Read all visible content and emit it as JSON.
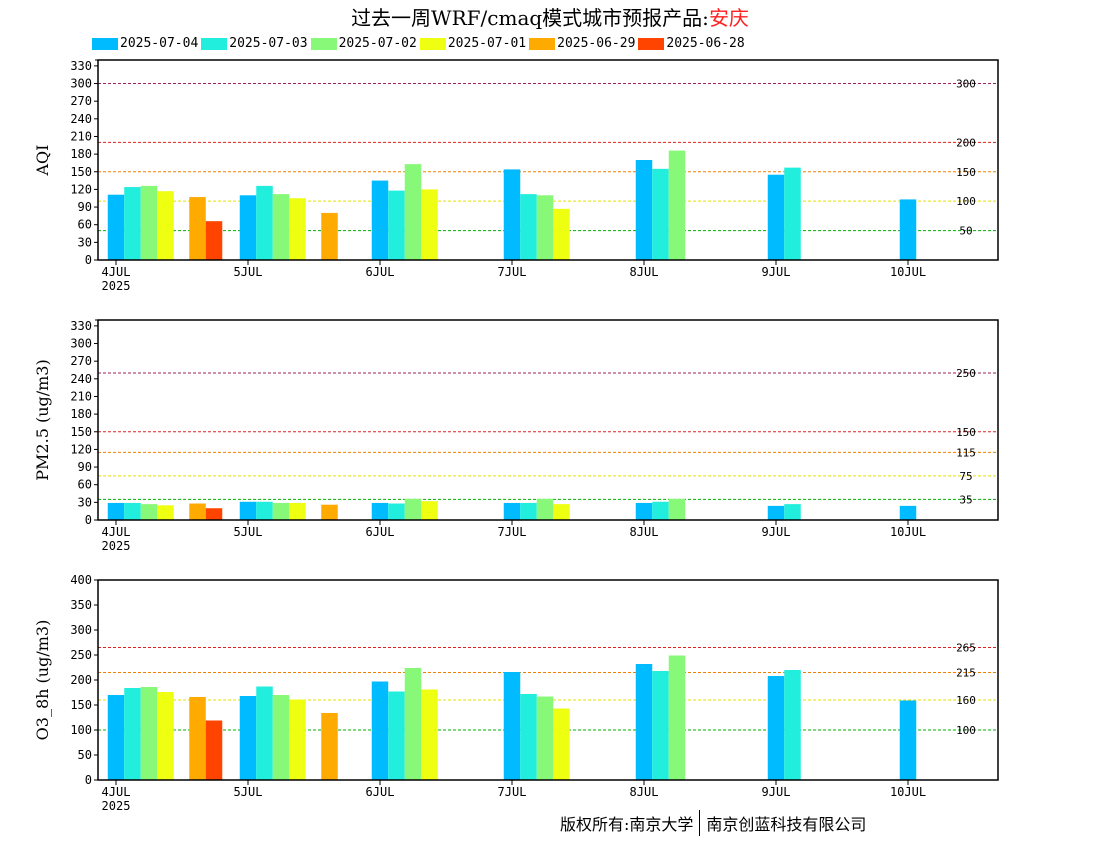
{
  "title": {
    "prefix": "过去一周WRF/cmaq模式城市预报产品:",
    "city": "安庆",
    "city_color": "#ff2020"
  },
  "footer": {
    "left": "版权所有:南京大学",
    "right": "南京创蓝科技有限公司"
  },
  "chart_data": [
    {
      "type": "bar",
      "ylabel": "AQI",
      "ylim": [
        0,
        340
      ],
      "yticks": [
        0,
        30,
        60,
        90,
        120,
        150,
        180,
        210,
        240,
        270,
        300,
        330
      ],
      "extra_ytick": 340,
      "x_tick_labels": [
        "4JUL",
        "5JUL",
        "6JUL",
        "7JUL",
        "8JUL",
        "9JUL",
        "10JUL"
      ],
      "x_year_label": "2025",
      "thresholds": [
        {
          "value": 300,
          "label": "300",
          "color": "#a0205a"
        },
        {
          "value": 200,
          "label": "200",
          "color": "#e02020"
        },
        {
          "value": 150,
          "label": "150",
          "color": "#f08000"
        },
        {
          "value": 100,
          "label": "100",
          "color": "#e8e000"
        },
        {
          "value": 50,
          "label": "50",
          "color": "#00b000"
        }
      ],
      "series": [
        {
          "name": "2025-07-04",
          "color": "#00bbff",
          "start_day": 0,
          "values": [
            111,
            110,
            135,
            154,
            170,
            145,
            103
          ]
        },
        {
          "name": "2025-07-03",
          "color": "#22eedd",
          "start_day": 0,
          "values": [
            124,
            126,
            118,
            112,
            155,
            157
          ]
        },
        {
          "name": "2025-07-02",
          "color": "#88f878",
          "start_day": 0,
          "values": [
            126,
            112,
            163,
            110,
            186
          ]
        },
        {
          "name": "2025-07-01",
          "color": "#eeff11",
          "start_day": 0,
          "values": [
            117,
            105,
            120,
            87
          ]
        },
        {
          "name": "2025-06-29",
          "color": "#ffaa00",
          "start_day": -1,
          "values": [
            107,
            80
          ]
        },
        {
          "name": "2025-06-28",
          "color": "#ff4400",
          "start_day": -1,
          "values": [
            66
          ]
        }
      ]
    },
    {
      "type": "bar",
      "ylabel": "PM2.5 (ug/m3)",
      "ylim": [
        0,
        340
      ],
      "yticks": [
        0,
        30,
        60,
        90,
        120,
        150,
        180,
        210,
        240,
        270,
        300,
        330
      ],
      "extra_ytick": 340,
      "x_tick_labels": [
        "4JUL",
        "5JUL",
        "6JUL",
        "7JUL",
        "8JUL",
        "9JUL",
        "10JUL"
      ],
      "x_year_label": "2025",
      "thresholds": [
        {
          "value": 250,
          "label": "250",
          "color": "#a0205a"
        },
        {
          "value": 150,
          "label": "150",
          "color": "#e02020"
        },
        {
          "value": 115,
          "label": "115",
          "color": "#f08000"
        },
        {
          "value": 75,
          "label": "75",
          "color": "#e8e000"
        },
        {
          "value": 35,
          "label": "35",
          "color": "#00b000"
        }
      ],
      "series": [
        {
          "name": "2025-07-04",
          "color": "#00bbff",
          "start_day": 0,
          "values": [
            29,
            31,
            29,
            29,
            29,
            24,
            24
          ]
        },
        {
          "name": "2025-07-03",
          "color": "#22eedd",
          "start_day": 0,
          "values": [
            29,
            31,
            28,
            29,
            31,
            27
          ]
        },
        {
          "name": "2025-07-02",
          "color": "#88f878",
          "start_day": 0,
          "values": [
            27,
            29,
            36,
            36,
            36
          ]
        },
        {
          "name": "2025-07-01",
          "color": "#eeff11",
          "start_day": 0,
          "values": [
            25,
            29,
            32,
            27
          ]
        },
        {
          "name": "2025-06-29",
          "color": "#ffaa00",
          "start_day": -1,
          "values": [
            28,
            26
          ]
        },
        {
          "name": "2025-06-28",
          "color": "#ff4400",
          "start_day": -1,
          "values": [
            20
          ]
        }
      ]
    },
    {
      "type": "bar",
      "ylabel": "O3_8h (ug/m3)",
      "ylim": [
        0,
        400
      ],
      "yticks": [
        0,
        50,
        100,
        150,
        200,
        250,
        300,
        350,
        400
      ],
      "x_tick_labels": [
        "4JUL",
        "5JUL",
        "6JUL",
        "7JUL",
        "8JUL",
        "9JUL",
        "10JUL"
      ],
      "x_year_label": "2025",
      "thresholds": [
        {
          "value": 265,
          "label": "265",
          "color": "#e02020"
        },
        {
          "value": 215,
          "label": "215",
          "color": "#f08000"
        },
        {
          "value": 160,
          "label": "160",
          "color": "#e8e000"
        },
        {
          "value": 100,
          "label": "100",
          "color": "#00b000"
        }
      ],
      "series": [
        {
          "name": "2025-07-04",
          "color": "#00bbff",
          "start_day": 0,
          "values": [
            170,
            168,
            197,
            216,
            232,
            208,
            159
          ]
        },
        {
          "name": "2025-07-03",
          "color": "#22eedd",
          "start_day": 0,
          "values": [
            184,
            187,
            177,
            172,
            218,
            220
          ]
        },
        {
          "name": "2025-07-02",
          "color": "#88f878",
          "start_day": 0,
          "values": [
            186,
            170,
            224,
            167,
            249
          ]
        },
        {
          "name": "2025-07-01",
          "color": "#eeff11",
          "start_day": 0,
          "values": [
            176,
            161,
            181,
            143
          ]
        },
        {
          "name": "2025-06-29",
          "color": "#ffaa00",
          "start_day": -1,
          "values": [
            166,
            134
          ]
        },
        {
          "name": "2025-06-28",
          "color": "#ff4400",
          "start_day": -1,
          "values": [
            119
          ]
        }
      ]
    }
  ]
}
